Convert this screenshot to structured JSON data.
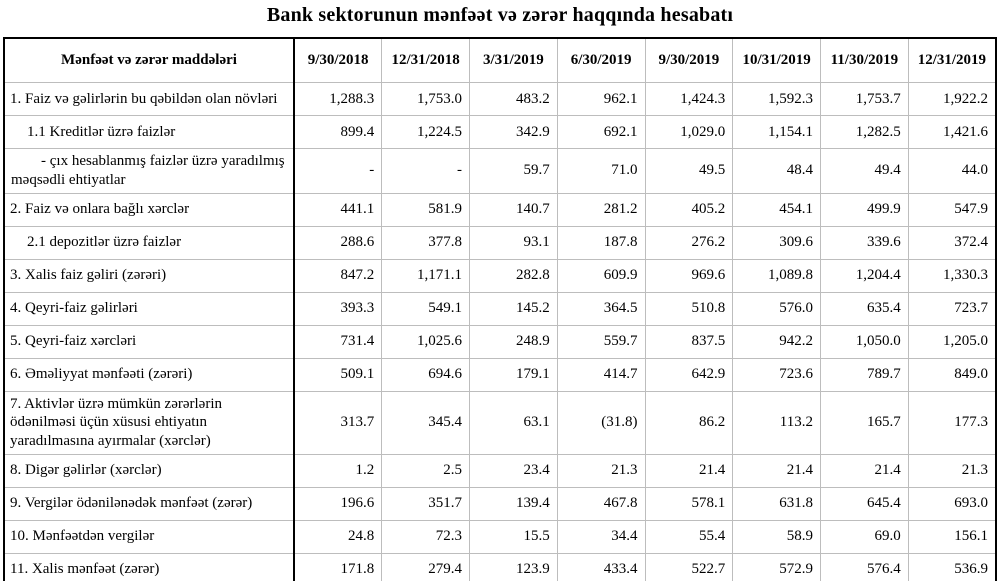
{
  "title": "Bank sektorunun mənfəət və zərər haqqında hesabatı",
  "table": {
    "header": [
      "Mənfəət və zərər maddələri",
      "9/30/2018",
      "12/31/2018",
      "3/31/2019",
      "6/30/2019",
      "9/30/2019",
      "10/31/2019",
      "11/30/2019",
      "12/31/2019"
    ],
    "rows": [
      {
        "label": "1. Faiz və gəlirlərin bu qəbildən olan növləri",
        "indent": 0,
        "values": [
          "1,288.3",
          "1,753.0",
          "483.2",
          "962.1",
          "1,424.3",
          "1,592.3",
          "1,753.7",
          "1,922.2"
        ]
      },
      {
        "label": "1.1 Kreditlər üzrə faizlər",
        "indent": 1,
        "values": [
          "899.4",
          "1,224.5",
          "342.9",
          "692.1",
          "1,029.0",
          "1,154.1",
          "1,282.5",
          "1,421.6"
        ]
      },
      {
        "label": "- çıx hesablanmış faizlər üzrə yaradılmış məqsədli ehtiyatlar",
        "indent": 2,
        "values": [
          "-",
          "-",
          "59.7",
          "71.0",
          "49.5",
          "48.4",
          "49.4",
          "44.0"
        ]
      },
      {
        "label": "2. Faiz və onlara bağlı xərclər",
        "indent": 0,
        "values": [
          "441.1",
          "581.9",
          "140.7",
          "281.2",
          "405.2",
          "454.1",
          "499.9",
          "547.9"
        ]
      },
      {
        "label": "2.1 depozitlər üzrə faizlər",
        "indent": 1,
        "values": [
          "288.6",
          "377.8",
          "93.1",
          "187.8",
          "276.2",
          "309.6",
          "339.6",
          "372.4"
        ]
      },
      {
        "label": "3. Xalis faiz gəliri (zərəri)",
        "indent": 0,
        "values": [
          "847.2",
          "1,171.1",
          "282.8",
          "609.9",
          "969.6",
          "1,089.8",
          "1,204.4",
          "1,330.3"
        ]
      },
      {
        "label": "4. Qeyri-faiz gəlirləri",
        "indent": 0,
        "values": [
          "393.3",
          "549.1",
          "145.2",
          "364.5",
          "510.8",
          "576.0",
          "635.4",
          "723.7"
        ]
      },
      {
        "label": "5. Qeyri-faiz xərcləri",
        "indent": 0,
        "values": [
          "731.4",
          "1,025.6",
          "248.9",
          "559.7",
          "837.5",
          "942.2",
          "1,050.0",
          "1,205.0"
        ]
      },
      {
        "label": "6. Əməliyyat mənfəəti (zərəri)",
        "indent": 0,
        "values": [
          "509.1",
          "694.6",
          "179.1",
          "414.7",
          "642.9",
          "723.6",
          "789.7",
          "849.0"
        ]
      },
      {
        "label": "7. Aktivlər üzrə mümkün zərərlərin ödənilməsi üçün xüsusi ehtiyatın yaradılmasına ayırmalar (xərclər)",
        "indent": 0,
        "values": [
          "313.7",
          "345.4",
          "63.1",
          "(31.8)",
          "86.2",
          "113.2",
          "165.7",
          "177.3"
        ]
      },
      {
        "label": "8. Digər gəlirlər (xərclər)",
        "indent": 0,
        "values": [
          "1.2",
          "2.5",
          "23.4",
          "21.3",
          "21.4",
          "21.4",
          "21.4",
          "21.3"
        ]
      },
      {
        "label": "9. Vergilər ödənilənədək mənfəət (zərər)",
        "indent": 0,
        "values": [
          "196.6",
          "351.7",
          "139.4",
          "467.8",
          "578.1",
          "631.8",
          "645.4",
          "693.0"
        ]
      },
      {
        "label": "10. Mənfəətdən vergilər",
        "indent": 0,
        "values": [
          "24.8",
          "72.3",
          "15.5",
          "34.4",
          "55.4",
          "58.9",
          "69.0",
          "156.1"
        ]
      },
      {
        "label": "11. Xalis mənfəət (zərər)",
        "indent": 0,
        "values": [
          "171.8",
          "279.4",
          "123.9",
          "433.4",
          "522.7",
          "572.9",
          "576.4",
          "536.9"
        ]
      }
    ],
    "colors": {
      "grid_line": "#bdbdbd",
      "outer_border": "#000000",
      "text": "#000000",
      "background": "#ffffff"
    }
  }
}
